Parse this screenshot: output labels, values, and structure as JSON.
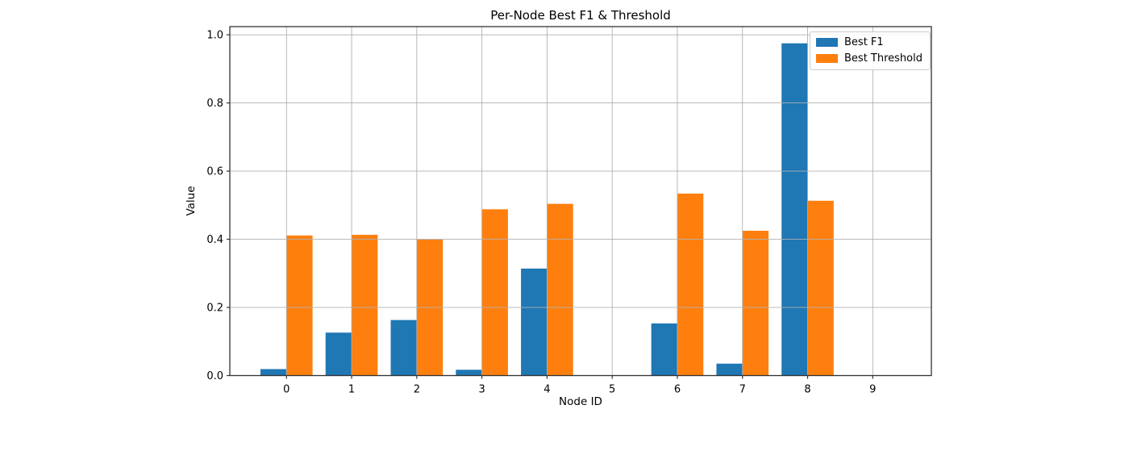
{
  "chart_data": {
    "type": "bar",
    "title": "Per-Node Best F1 & Threshold",
    "xlabel": "Node ID",
    "ylabel": "Value",
    "categories": [
      "0",
      "1",
      "2",
      "3",
      "4",
      "5",
      "6",
      "7",
      "8",
      "9"
    ],
    "series": [
      {
        "name": "Best F1",
        "color": "#1f77b4",
        "values": [
          0.019,
          0.126,
          0.163,
          0.017,
          0.314,
          0.0,
          0.153,
          0.035,
          0.975,
          0.0
        ]
      },
      {
        "name": "Best Threshold",
        "color": "#ff7f0e",
        "values": [
          0.411,
          0.413,
          0.4,
          0.488,
          0.504,
          0.0,
          0.534,
          0.425,
          0.513,
          0.0
        ]
      }
    ],
    "ytick_values": [
      0.0,
      0.2,
      0.4,
      0.6,
      0.8,
      1.0
    ],
    "ytick_labels": [
      "0.0",
      "0.2",
      "0.4",
      "0.6",
      "0.8",
      "1.0"
    ],
    "ylim": [
      0,
      1.024
    ],
    "xlim": [
      -0.87,
      9.9
    ],
    "bar_width": 0.4,
    "grid": true,
    "legend_position": "upper right",
    "grid_color": "#b0b0b0",
    "spine_color": "#333333",
    "tick_color": "#333333",
    "background": "#ffffff"
  }
}
